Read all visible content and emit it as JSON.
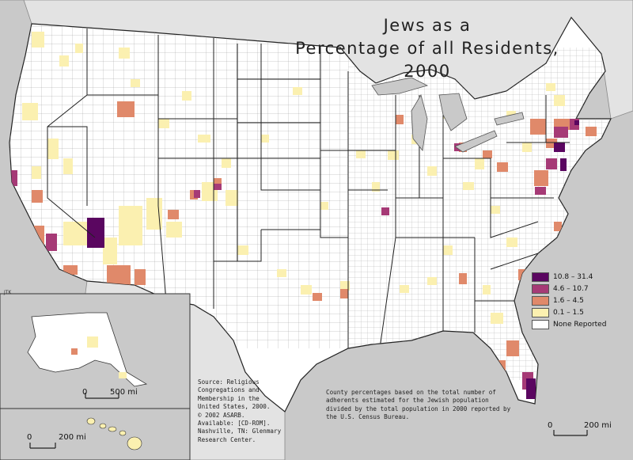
{
  "title": {
    "line1": "Jews as a",
    "line2": "Percentage of all Residents, 2000"
  },
  "legend": {
    "items": [
      {
        "label": "10.8 – 31.4",
        "color": "#5a0660"
      },
      {
        "label": "4.6 – 10.7",
        "color": "#a63a76"
      },
      {
        "label": "1.6 – 4.5",
        "color": "#e0896a"
      },
      {
        "label": "0.1 – 1.5",
        "color": "#fbf0b0"
      },
      {
        "label": "None Reported",
        "color": "#ffffff"
      }
    ]
  },
  "source_text": "Source:  Religious\nCongregations and\nMembership in the\nUnited States, 2000.\n© 2002 ASARB.\nAvailable: [CD-ROM].\nNashville, TN: Glenmary\nResearch Center.",
  "note_text": "County percentages based on the total number of adherents estimated for the Jewish population divided by the total population in 2000 reported by the U.S. Census Bureau.",
  "scale_bars": {
    "main": {
      "zero": "0",
      "end": "200 mi"
    },
    "alaska": {
      "zero": "0",
      "end": "500 mi"
    },
    "hawaii": {
      "zero": "0",
      "end": "200 mi"
    }
  },
  "credit": "JTK",
  "colors": {
    "ocean": "#c9c9c9",
    "land": "#ffffff",
    "border": "#333333"
  }
}
